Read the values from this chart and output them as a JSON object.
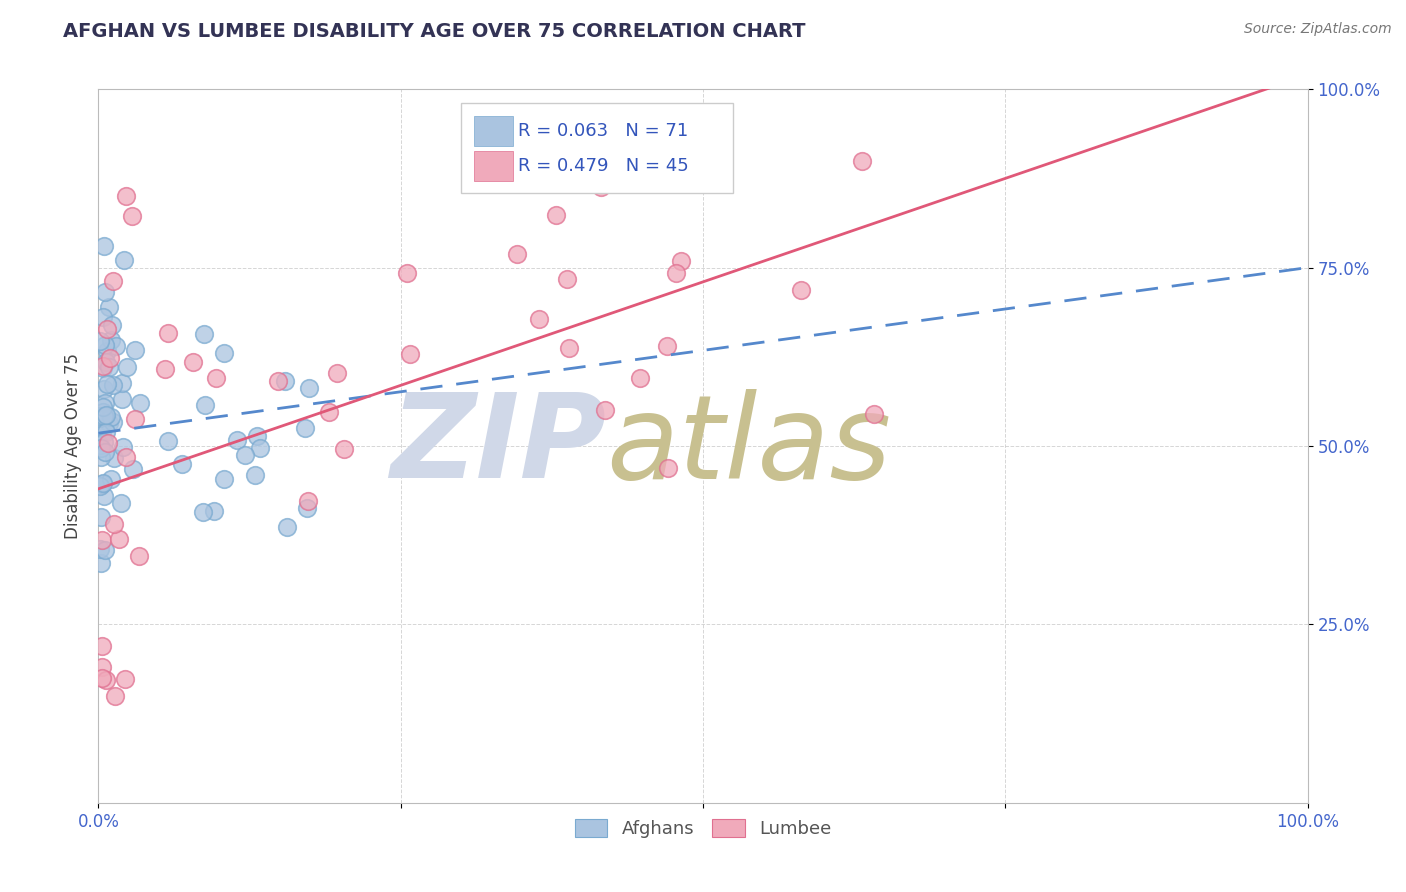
{
  "title": "AFGHAN VS LUMBEE DISABILITY AGE OVER 75 CORRELATION CHART",
  "source": "Source: ZipAtlas.com",
  "ylabel": "Disability Age Over 75",
  "afghan_R": 0.063,
  "afghan_N": 71,
  "lumbee_R": 0.479,
  "lumbee_N": 45,
  "afghan_color": "#aac4e0",
  "afghan_edge_color": "#7aaad0",
  "lumbee_color": "#f0aabb",
  "lumbee_edge_color": "#e07090",
  "afghan_line_color": "#5588cc",
  "lumbee_line_color": "#e05878",
  "title_color": "#333355",
  "source_color": "#777777",
  "legend_text_color": "#3355bb",
  "background_color": "#ffffff",
  "watermark_zip_color": "#d0d8e8",
  "watermark_atlas_color": "#c8c090",
  "xlim": [
    0,
    1.0
  ],
  "ylim": [
    0,
    1.0
  ],
  "ytick_positions": [
    0.25,
    0.5,
    0.75,
    1.0
  ],
  "ytick_labels": [
    "25.0%",
    "50.0%",
    "75.0%",
    "100.0%"
  ],
  "xtick_positions": [
    0.0,
    1.0
  ],
  "xtick_labels": [
    "0.0%",
    "100.0%"
  ],
  "afghan_line_x0": 0.0,
  "afghan_line_y0": 0.518,
  "afghan_line_x1": 1.0,
  "afghan_line_y1": 0.75,
  "lumbee_line_x0": 0.0,
  "lumbee_line_y0": 0.44,
  "lumbee_line_x1": 1.0,
  "lumbee_line_y1": 1.02
}
